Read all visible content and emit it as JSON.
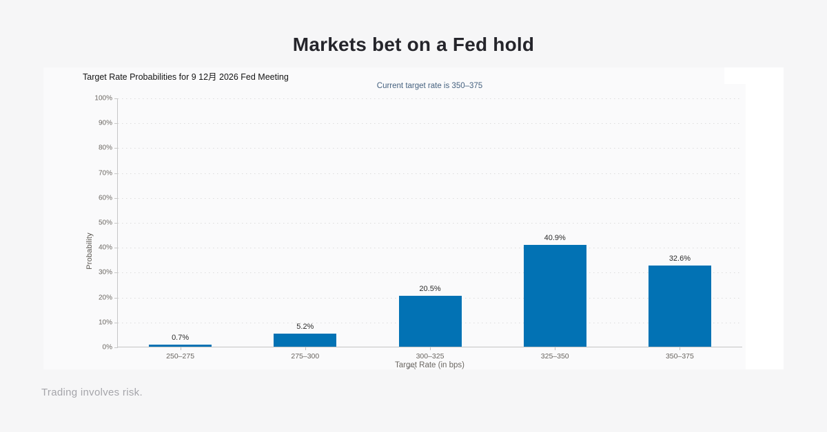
{
  "header": {
    "title": "Markets bet on a Fed hold"
  },
  "footer": {
    "disclaimer": "Trading involves risk."
  },
  "chart_data": {
    "type": "bar",
    "title": "Target Rate Probabilities for 9 12月 2026 Fed Meeting",
    "subtitle": "Current target rate is 350–375",
    "categories": [
      "250–275",
      "275–300",
      "300–325",
      "325–350",
      "350–375"
    ],
    "values": [
      0.7,
      5.2,
      20.5,
      40.9,
      32.6
    ],
    "value_labels": [
      "0.7%",
      "5.2%",
      "20.5%",
      "40.9%",
      "32.6%"
    ],
    "xlabel": "Target Rate (in bps)",
    "ylabel": "Probability",
    "ylim": [
      0,
      100
    ],
    "ytick_step": 10,
    "ytick_labels": [
      "0%",
      "10%",
      "20%",
      "30%",
      "40%",
      "50%",
      "60%",
      "70%",
      "80%",
      "90%",
      "100%"
    ],
    "grid": "horizontal-dotted",
    "legend": "none",
    "bar_color": "#0272b4"
  },
  "colors": {
    "page_bg": "#f6f6f7",
    "panel_bg": "#ffffff",
    "bar": "#0272b4",
    "subtitle_text": "#45617f",
    "axis_line": "#c6c6c6",
    "tick_text": "#6b6762",
    "title_text": "#25252b",
    "footer_text": "#a5a5aa"
  }
}
